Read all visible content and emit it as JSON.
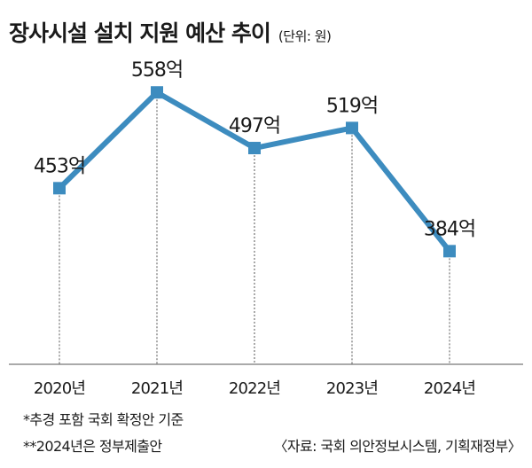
{
  "title": "장사시설 설치 지원 예산 추이",
  "unit_note": "(단위: 원)",
  "chart_data": {
    "type": "line",
    "categories": [
      "2020년",
      "2021년",
      "2022년",
      "2023년",
      "2024년"
    ],
    "series": [
      {
        "values": [
          453,
          558,
          497,
          519,
          384
        ]
      }
    ],
    "data_labels": [
      "453억",
      "558억",
      "497억",
      "519억",
      "384억"
    ],
    "ylim": [
      260,
      600
    ],
    "grid": false,
    "colors": {
      "line": "#3d8cbf",
      "marker": "#3d8cbf",
      "dropline": "#555555",
      "axis": "#555555"
    }
  },
  "footnotes": [
    "*추경 포함 국회 확정안 기준",
    "**2024년은 정부제출안"
  ],
  "source": "〈자료: 국회 의안정보시스템, 기획재정부〉"
}
